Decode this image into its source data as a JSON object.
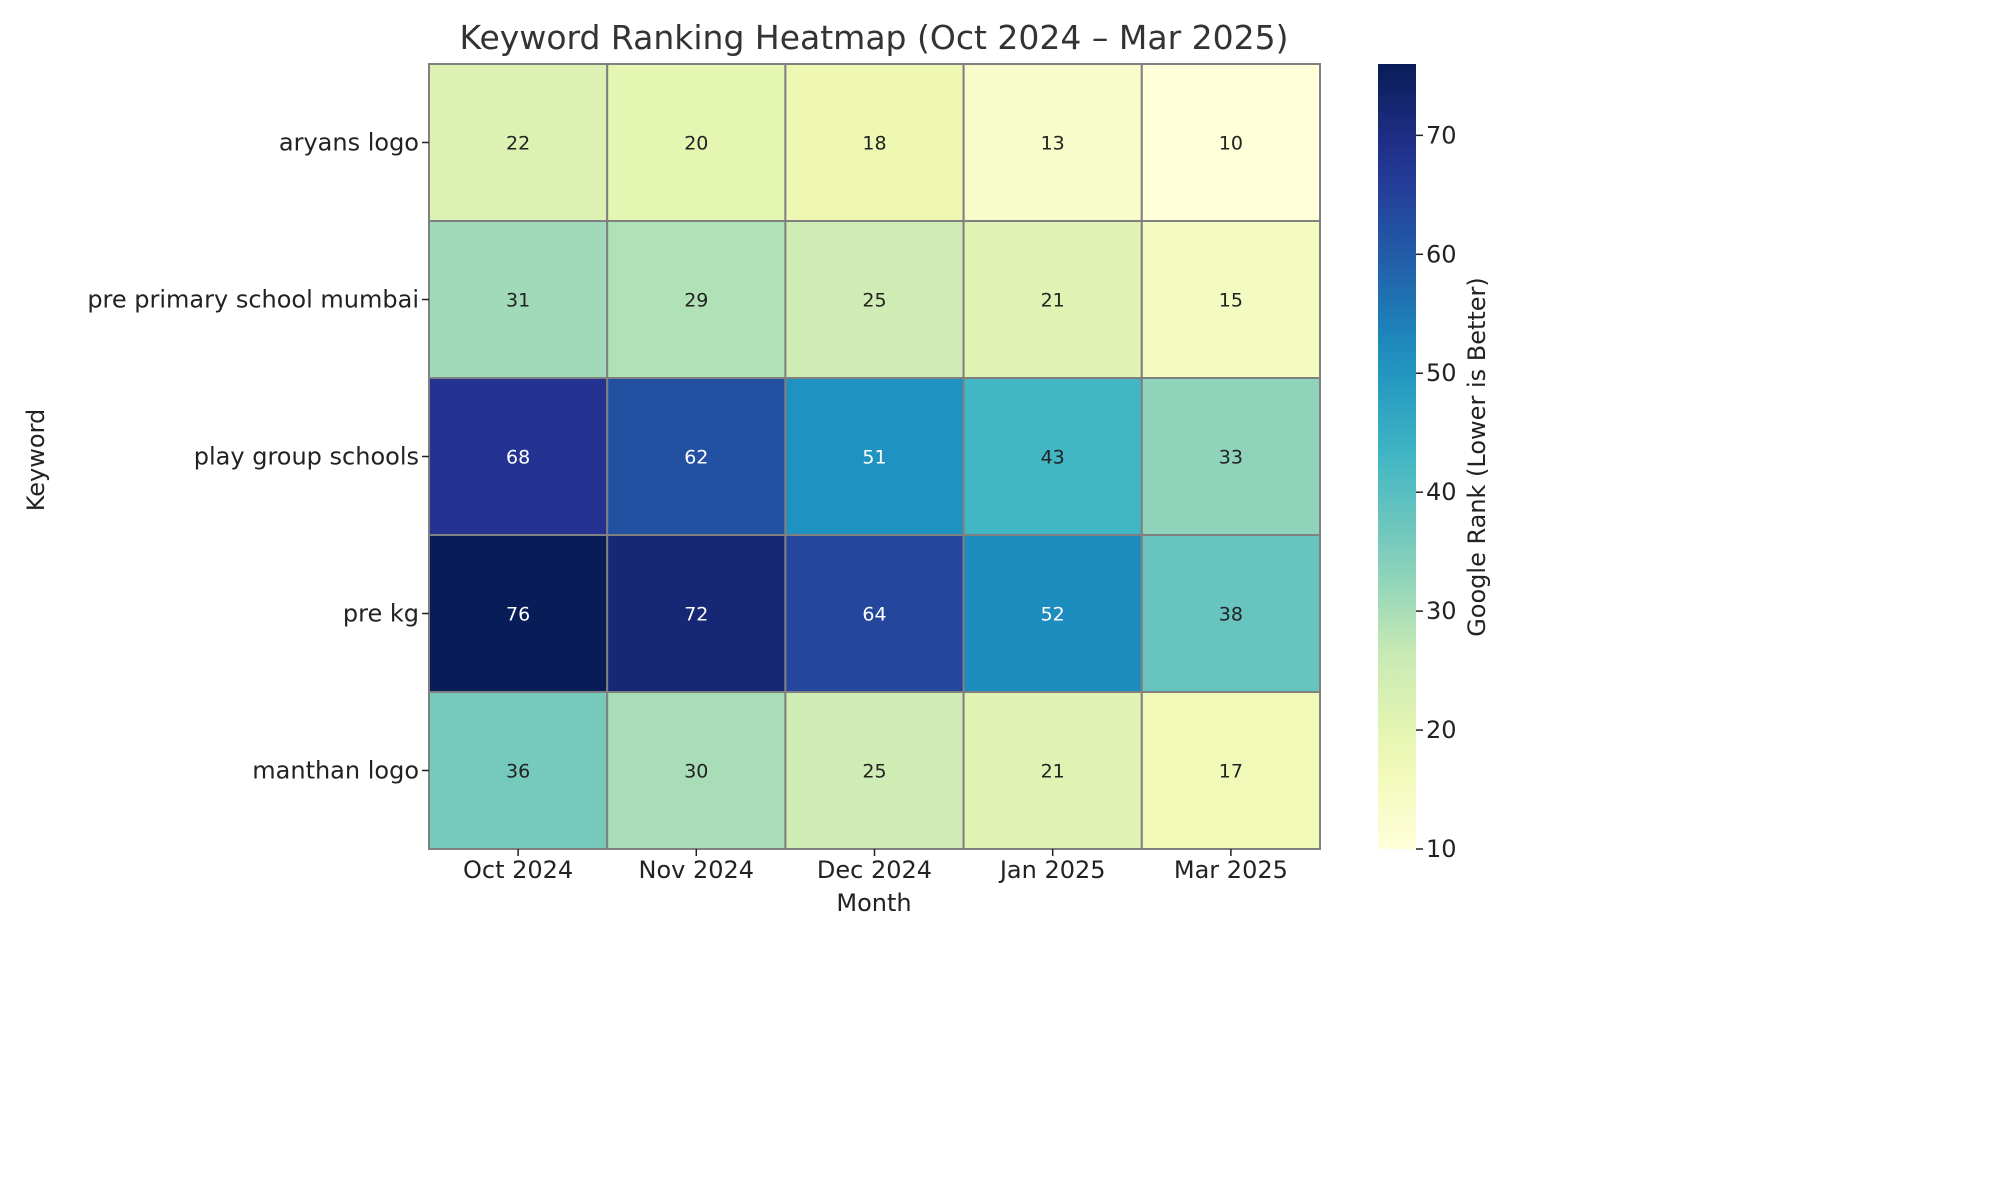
{
  "chart_data": {
    "type": "heatmap",
    "title": "Keyword Ranking Heatmap (Oct 2024 – Mar 2025)",
    "xlabel": "Month",
    "ylabel": "Keyword",
    "colorbar_label": "Google Rank (Lower is Better)",
    "colormap": "YlGnBu",
    "vmin": 10,
    "vmax": 76,
    "colorbar_ticks": [
      10,
      20,
      30,
      40,
      50,
      60,
      70
    ],
    "x_categories": [
      "Oct 2024",
      "Nov 2024",
      "Dec 2024",
      "Jan 2025",
      "Mar 2025"
    ],
    "y_categories": [
      "aryans logo",
      "pre primary school mumbai",
      "play group schools",
      "pre kg",
      "manthan logo"
    ],
    "values": [
      [
        22,
        20,
        18,
        13,
        10
      ],
      [
        31,
        29,
        25,
        21,
        15
      ],
      [
        68,
        62,
        51,
        43,
        33
      ],
      [
        76,
        72,
        64,
        52,
        38
      ],
      [
        36,
        30,
        25,
        21,
        17
      ]
    ],
    "grid_line_color": "#808080",
    "annotation_dark_color": "#222222",
    "annotation_light_color": "#ffffff"
  }
}
